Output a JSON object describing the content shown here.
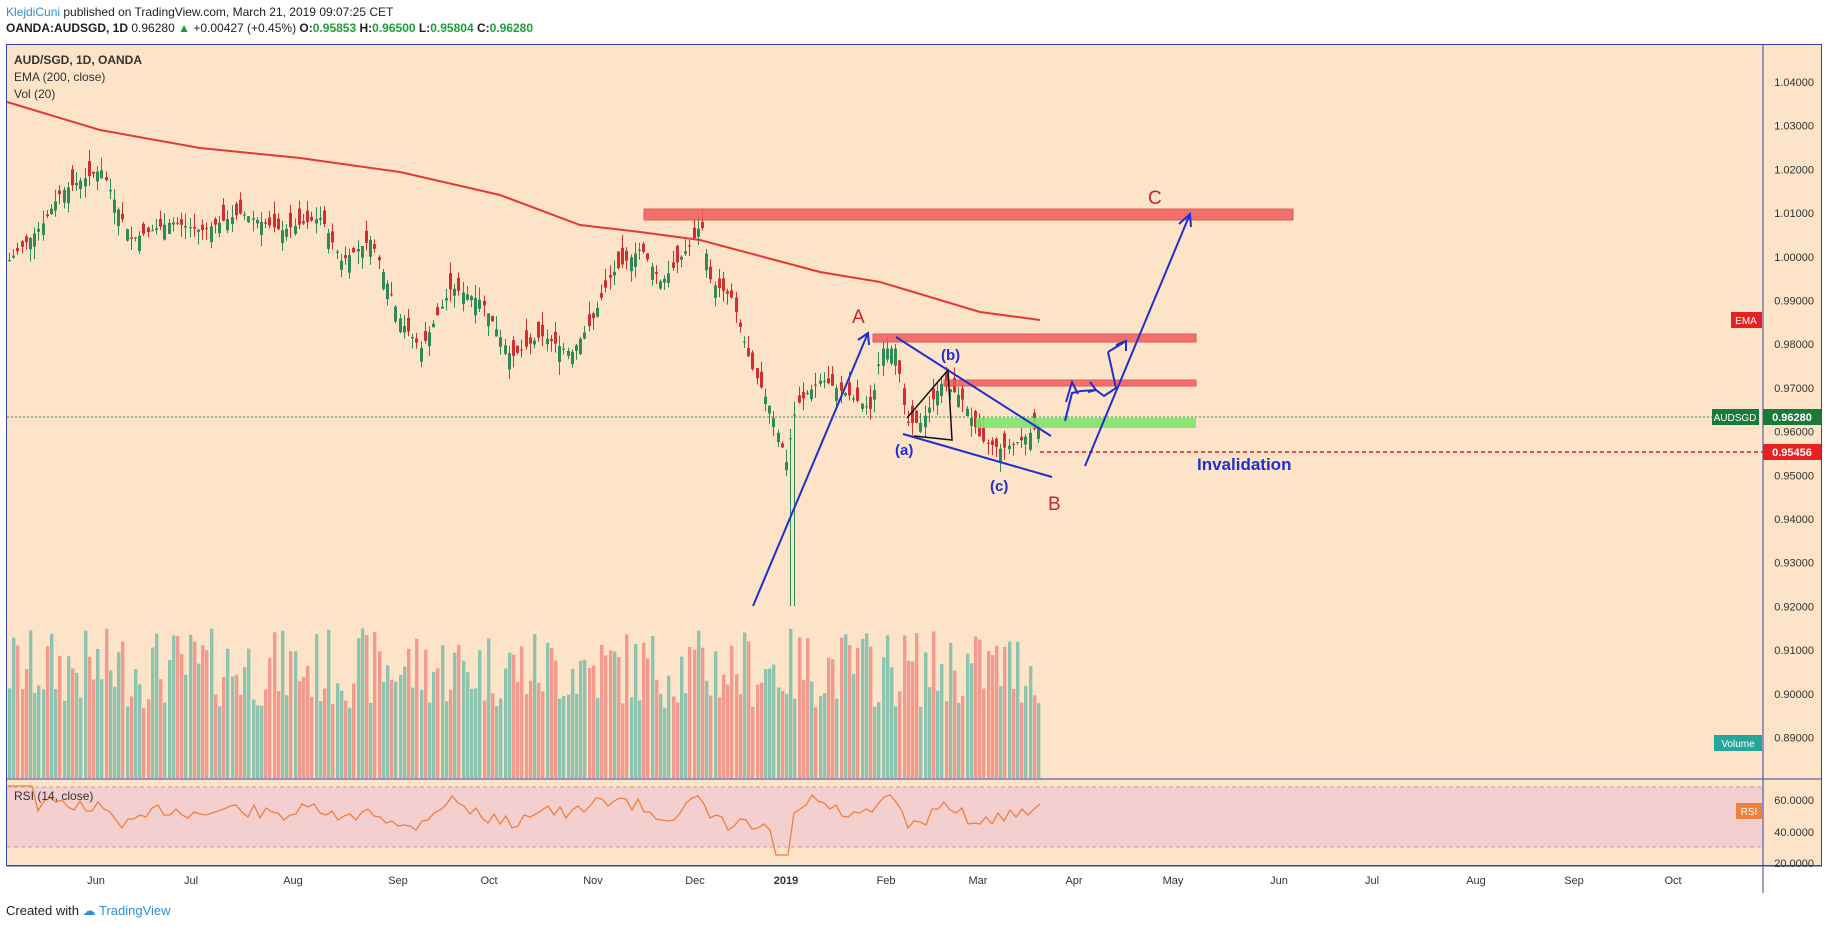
{
  "header": {
    "author": "KlejdiCuni",
    "published_text": "published on TradingView.com, March 21, 2019 09:07:25 CET",
    "symbol": "OANDA:AUDSGD, 1D",
    "last": "0.96280",
    "change_arrow": "▲",
    "change": "+0.00427 (+0.45%)",
    "open_label": "O:",
    "open": "0.95853",
    "high_label": "H:",
    "high": "0.96500",
    "low_label": "L:",
    "low": "0.95804",
    "close_label": "C:",
    "close": "0.96280"
  },
  "legend": {
    "title": "AUD/SGD, 1D, OANDA",
    "ema": "EMA (200, close)",
    "vol": "Vol (20)",
    "rsi": "RSI (14, close)"
  },
  "price_axis": {
    "ticks": [
      "1.04000",
      "1.03000",
      "1.02000",
      "1.01000",
      "1.00000",
      "0.99000",
      "0.98000",
      "0.97000",
      "0.96000",
      "0.95000",
      "0.94000",
      "0.93000",
      "0.92000",
      "0.91000",
      "0.90000",
      "0.89000"
    ],
    "tick_values": [
      1.04,
      1.03,
      1.02,
      1.01,
      1.0,
      0.99,
      0.98,
      0.97,
      0.96,
      0.95,
      0.94,
      0.93,
      0.92,
      0.91,
      0.9,
      0.89
    ],
    "badges": {
      "ema": "EMA",
      "symbol": "AUDSGD",
      "last_price": "0.96280",
      "invalidation_price": "0.95456",
      "volume": "Volume"
    },
    "rsi_ticks": [
      "60.0000",
      "40.0000",
      "20.0000"
    ],
    "rsi_badge": "RSI"
  },
  "time_axis": {
    "labels": [
      "Jun",
      "Jul",
      "Aug",
      "Sep",
      "Oct",
      "Nov",
      "Dec",
      "2019",
      "Feb",
      "Mar",
      "Apr",
      "May",
      "Jun",
      "Jul",
      "Aug",
      "Sep",
      "Oct"
    ]
  },
  "annotations": {
    "wave_A": "A",
    "wave_B": "B",
    "wave_C": "C",
    "sub_a": "(a)",
    "sub_b": "(b)",
    "sub_c": "(c)",
    "invalidation": "Invalidation"
  },
  "colors": {
    "background": "#fde4c8",
    "ema_line": "#e53935",
    "up_candle": "#2e8b57",
    "down_candle": "#d32f2f",
    "annotation_blue": "#1f2fd1",
    "annotation_red": "#c62828",
    "zone_red": "#f25b5b",
    "zone_green": "#7fe36e",
    "rsi_line": "#f0803c",
    "rsi_band": "#f3cfcf",
    "volume_up": "#8dc4b0",
    "volume_down": "#f29a8e"
  },
  "footer": {
    "created_with": "Created with",
    "brand": "TradingView"
  }
}
